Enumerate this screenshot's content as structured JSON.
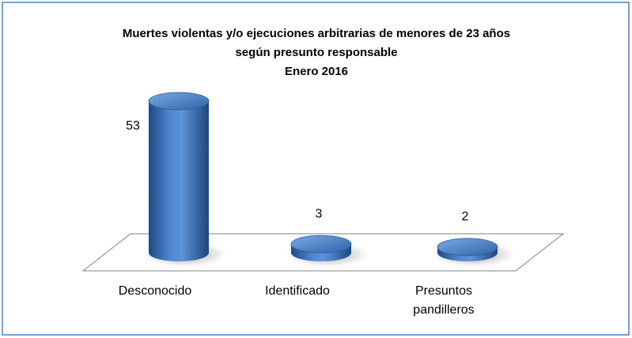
{
  "chart_data": {
    "type": "bar3d",
    "title": [
      "Muertes violentas y/o ejecuciones arbitrarias de menores de 23 años",
      "según presunto responsable",
      "Enero 2016"
    ],
    "categories": [
      "Desconocido",
      "Identificado",
      "Presuntos pandilleros"
    ],
    "values": [
      53,
      3,
      2
    ],
    "color": "#3a6fb8"
  }
}
